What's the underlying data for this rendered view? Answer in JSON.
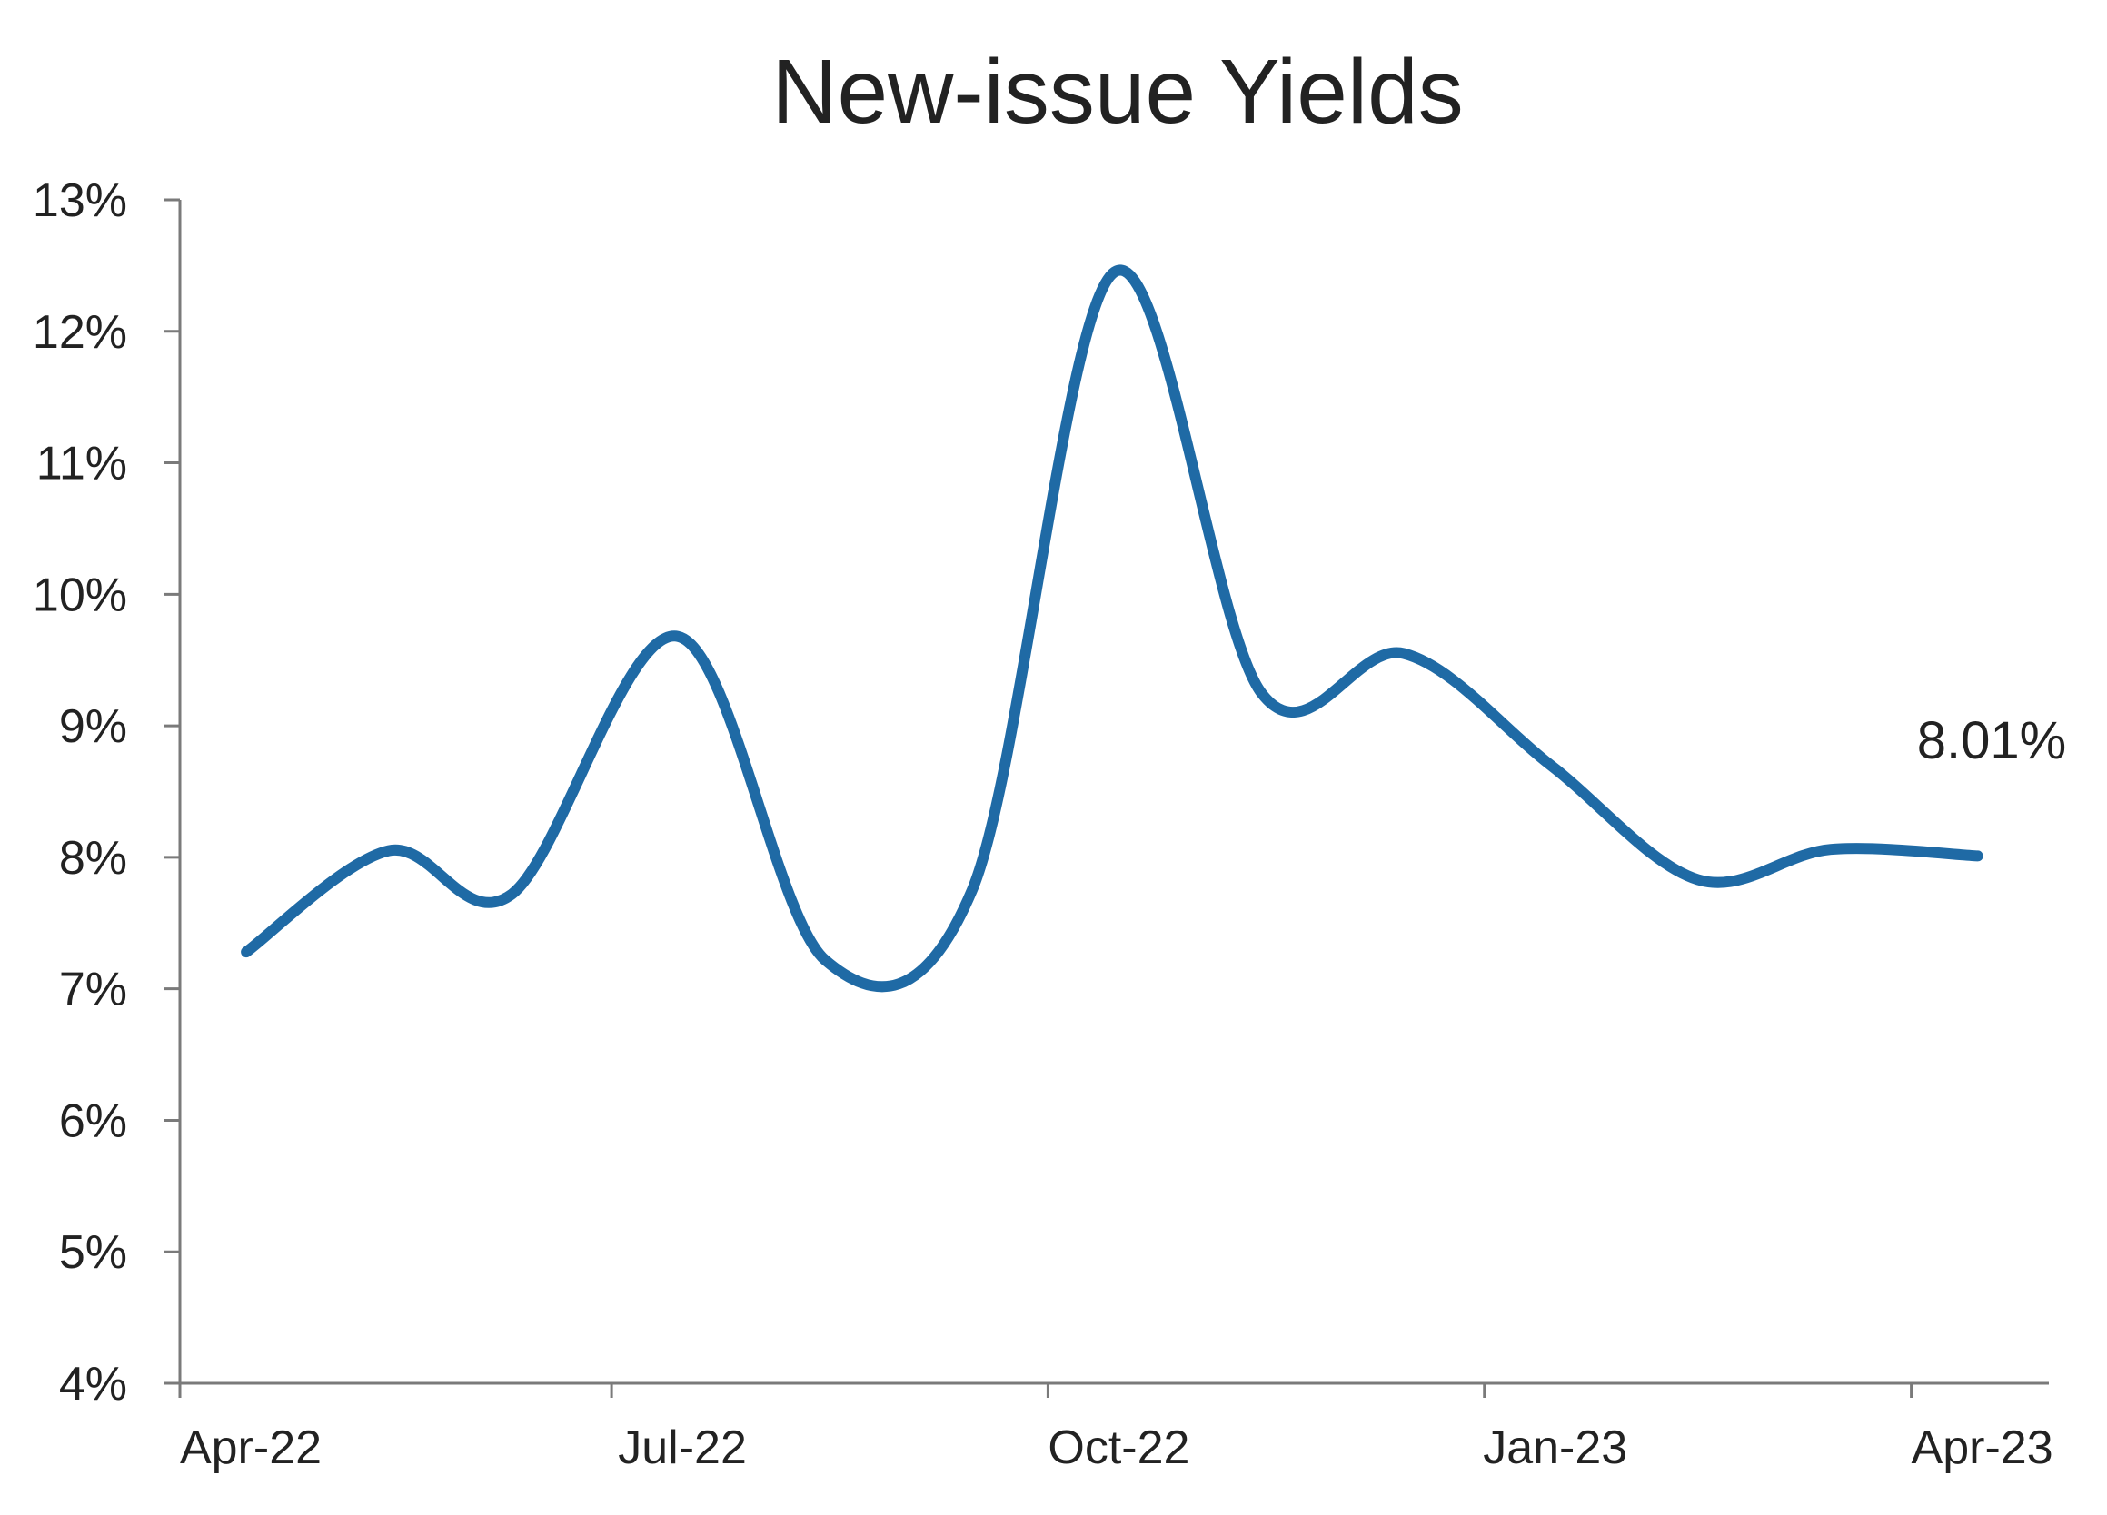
{
  "chart_data": {
    "type": "line",
    "title": "New-issue Yields",
    "xlabel": "",
    "ylabel": "",
    "x_ticks": [
      "Apr-22",
      "Jul-22",
      "Oct-22",
      "Jan-23",
      "Apr-23"
    ],
    "y_ticks": [
      "4%",
      "5%",
      "6%",
      "7%",
      "8%",
      "9%",
      "10%",
      "11%",
      "12%",
      "13%"
    ],
    "ylim": [
      4,
      13
    ],
    "xlim": [
      "2022-04-01",
      "2023-04-30"
    ],
    "grid": false,
    "legend": "none",
    "series": [
      {
        "color": "#1f6aa5",
        "points": [
          {
            "x": "2022-04-15",
            "y": 7.28
          },
          {
            "x": "2022-05-15",
            "y": 8.05
          },
          {
            "x": "2022-06-10",
            "y": 7.72
          },
          {
            "x": "2022-07-15",
            "y": 9.68
          },
          {
            "x": "2022-08-15",
            "y": 7.22
          },
          {
            "x": "2022-09-15",
            "y": 7.75
          },
          {
            "x": "2022-10-15",
            "y": 12.45
          },
          {
            "x": "2022-11-15",
            "y": 9.25
          },
          {
            "x": "2022-12-15",
            "y": 9.55
          },
          {
            "x": "2023-01-15",
            "y": 8.7
          },
          {
            "x": "2023-02-15",
            "y": 7.83
          },
          {
            "x": "2023-03-15",
            "y": 8.06
          },
          {
            "x": "2023-04-15",
            "y": 8.01
          }
        ]
      }
    ],
    "annotation": "8.01%"
  }
}
